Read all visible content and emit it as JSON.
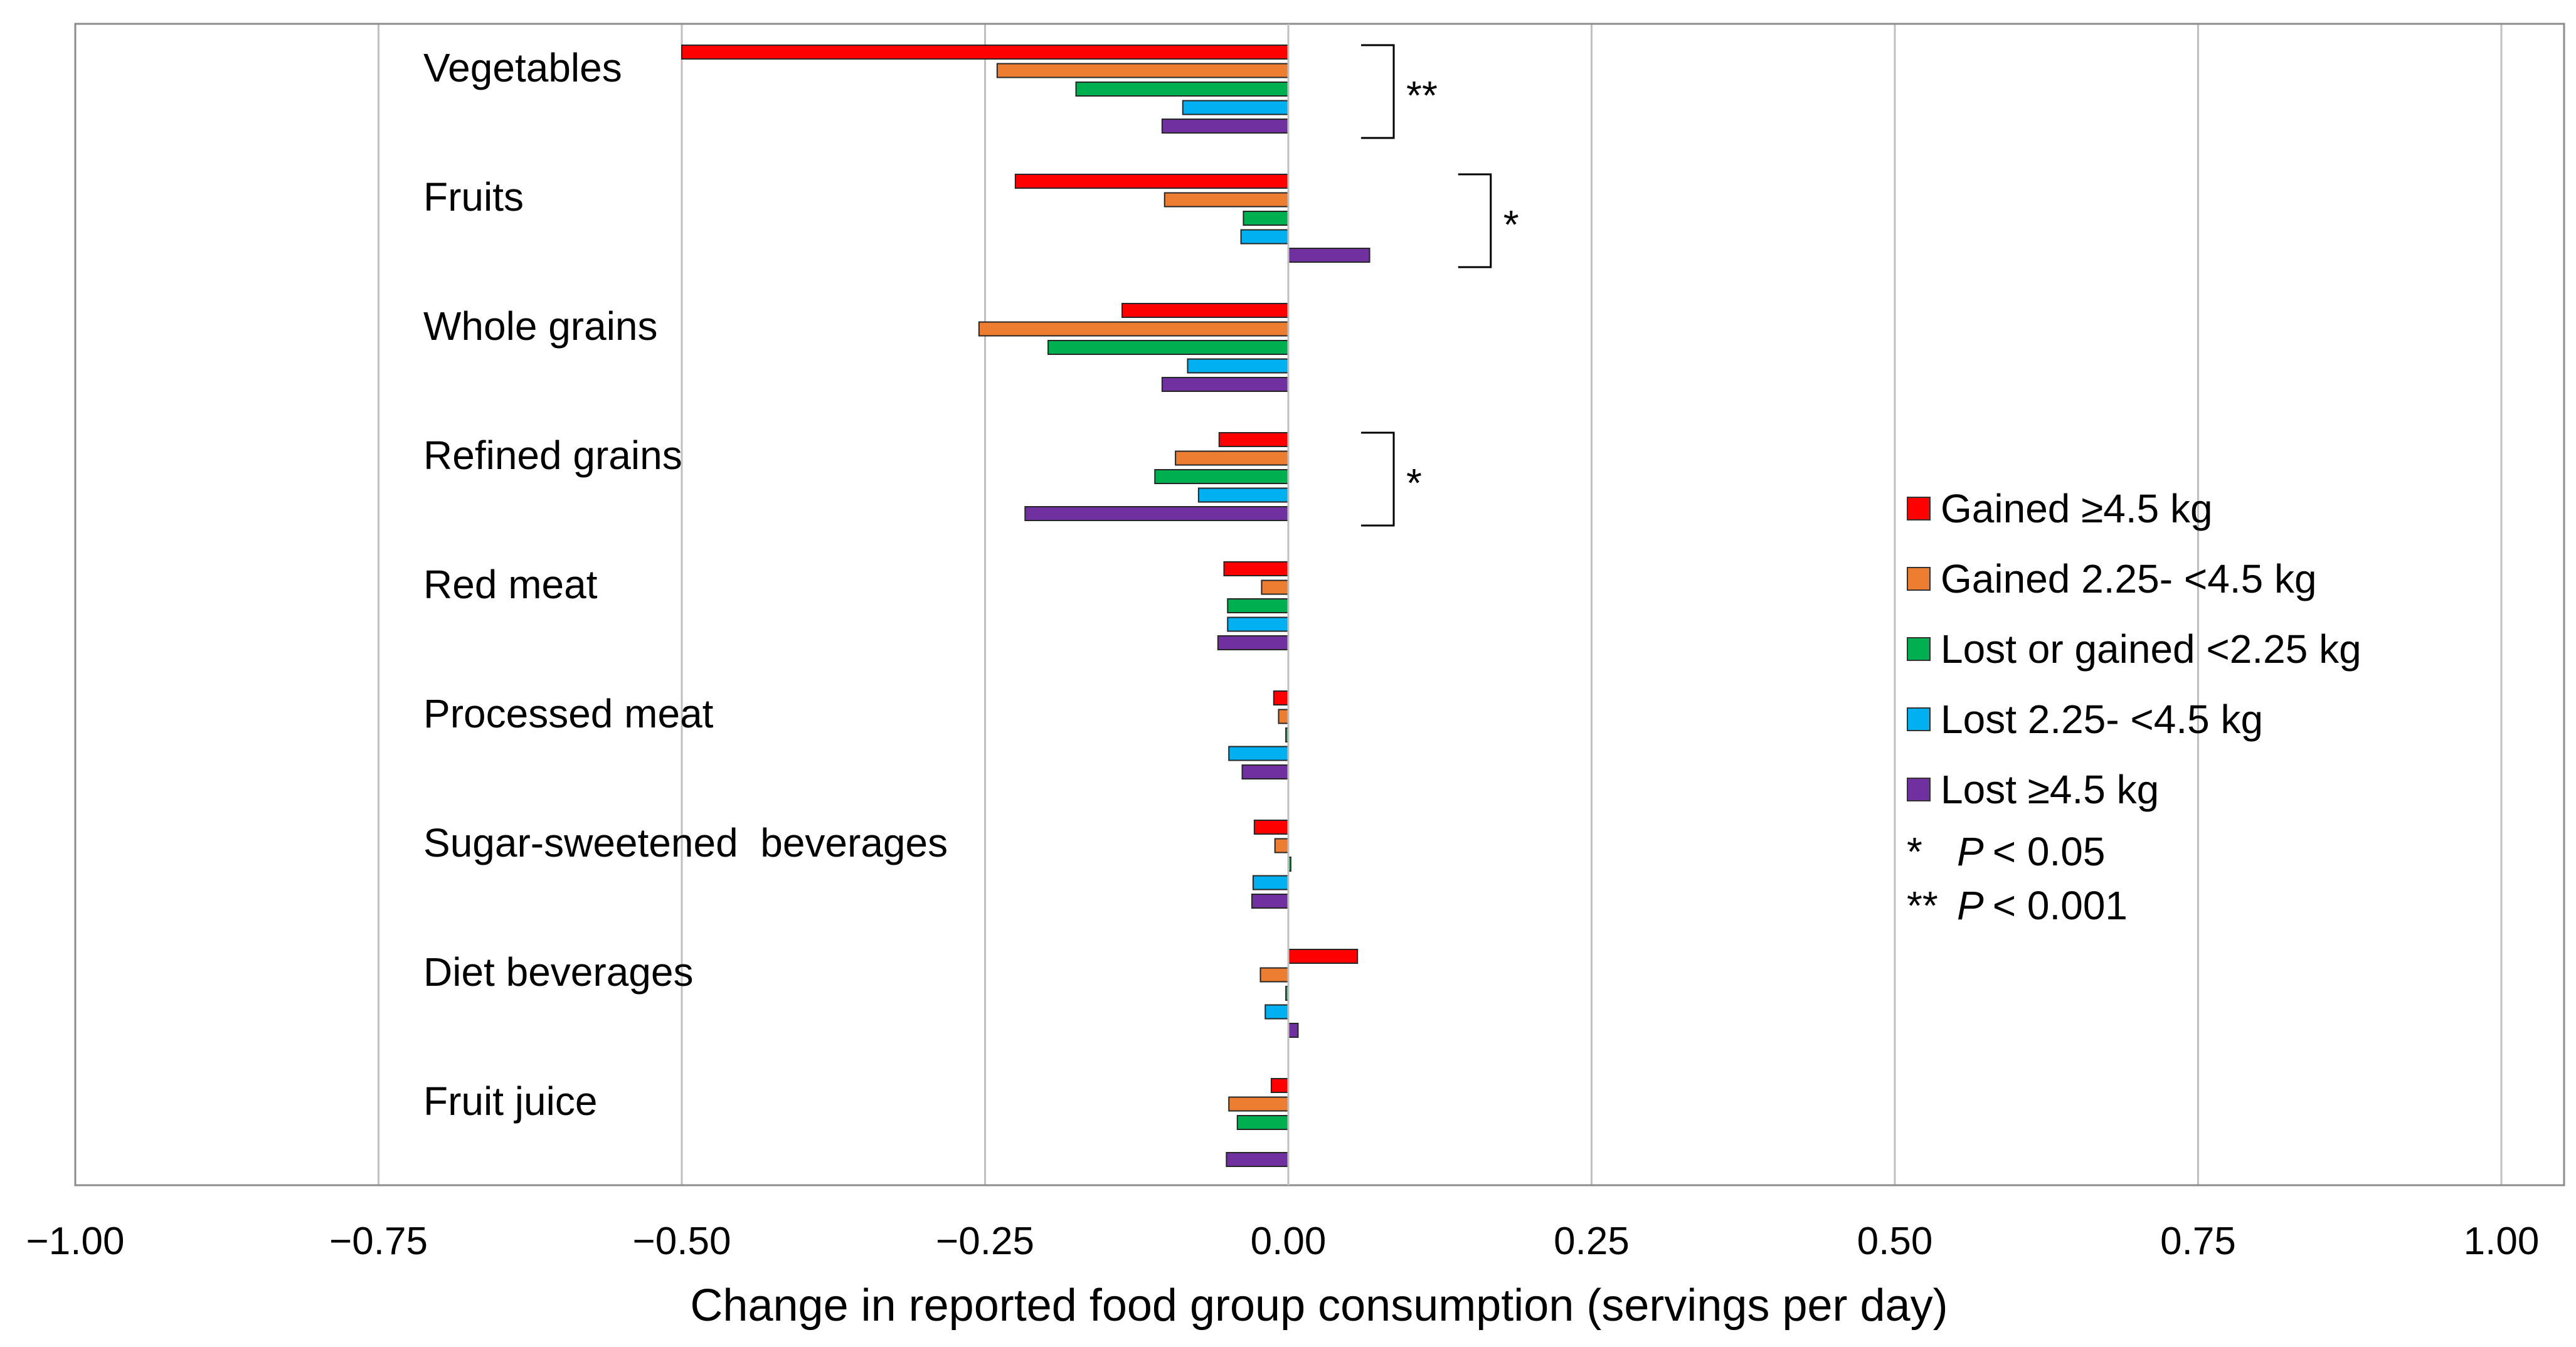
{
  "chart_data": {
    "type": "bar",
    "orientation": "horizontal",
    "xlabel": "Change in reported food group consumption (servings per day)",
    "ylabel": "",
    "xlim": [
      -1.0,
      1.0
    ],
    "xticks": [
      "−1.00",
      "−0.75",
      "−0.50",
      "−0.25",
      "0.00",
      "0.25",
      "0.50",
      "0.75",
      "1.00"
    ],
    "xtick_values": [
      -1.0,
      -0.75,
      -0.5,
      -0.25,
      0.0,
      0.25,
      0.5,
      0.75,
      1.0
    ],
    "grid": "vertical",
    "legend_position": "right",
    "categories": [
      "Vegetables",
      "Fruits",
      "Whole grains",
      "Refined grains",
      "Red meat",
      "Processed meat",
      "Sugar-sweetened  beverages",
      "Diet beverages",
      "Fruit juice"
    ],
    "series": [
      {
        "name": "Gained ≥4.5 kg",
        "color": "#ff0000",
        "values": [
          -0.5,
          -0.225,
          -0.137,
          -0.057,
          -0.053,
          -0.012,
          -0.028,
          0.057,
          -0.014
        ]
      },
      {
        "name": "Gained 2.25- <4.5 kg",
        "color": "#ed7d31",
        "values": [
          -0.24,
          -0.102,
          -0.255,
          -0.093,
          -0.022,
          -0.008,
          -0.011,
          -0.023,
          -0.049
        ]
      },
      {
        "name": "Lost or gained <2.25 kg",
        "color": "#00b050",
        "values": [
          -0.175,
          -0.037,
          -0.198,
          -0.11,
          -0.05,
          -0.002,
          0.002,
          -0.002,
          -0.042
        ]
      },
      {
        "name": "Lost 2.25- <4.5 kg",
        "color": "#00b0f0",
        "values": [
          -0.087,
          -0.039,
          -0.083,
          -0.074,
          -0.05,
          -0.049,
          -0.029,
          -0.019,
          0.0
        ]
      },
      {
        "name": "Lost ≥4.5 kg",
        "color": "#7030a0",
        "values": [
          -0.104,
          0.067,
          -0.104,
          -0.217,
          -0.058,
          -0.038,
          -0.03,
          0.008,
          -0.051
        ]
      }
    ],
    "annotations": [
      {
        "category": "Vegetables",
        "text": "**",
        "at_value": 0.06
      },
      {
        "category": "Fruits",
        "text": "*",
        "at_value": 0.14
      },
      {
        "category": "Refined grains",
        "text": "*",
        "at_value": 0.06
      }
    ],
    "significance_notes": [
      {
        "stars": "*",
        "p_label": "P",
        "rest": "< 0.05"
      },
      {
        "stars": "**",
        "p_label": "P",
        "rest": "< 0.001"
      }
    ]
  }
}
